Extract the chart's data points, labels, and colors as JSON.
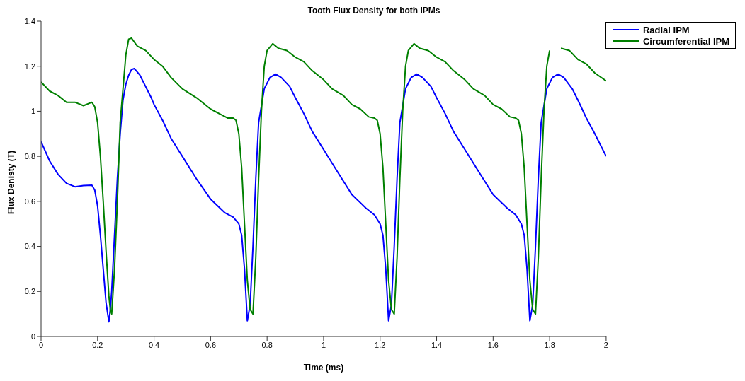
{
  "chart_data": {
    "type": "line",
    "title": "Tooth Flux Density for both IPMs",
    "xlabel": "Time (ms)",
    "ylabel": "Flux Denisty (T)",
    "xlim": [
      0,
      2
    ],
    "xticks": [
      0,
      0.2,
      0.4,
      0.6,
      0.8,
      1,
      1.2,
      1.4,
      1.6,
      1.8,
      2
    ],
    "ylim": [
      0,
      1.4
    ],
    "yticks": [
      0,
      0.2,
      0.4,
      0.6,
      0.8,
      1,
      1.2,
      1.4
    ],
    "grid": false,
    "legend": "top right",
    "marker": "none",
    "line_style": "solid",
    "series": [
      {
        "name": "Radial IPM",
        "color": "#0000ff",
        "x": [
          0,
          0.03,
          0.06,
          0.09,
          0.12,
          0.15,
          0.18,
          0.19,
          0.2,
          0.21,
          0.22,
          0.23,
          0.24,
          0.245,
          0.25,
          0.26,
          0.27,
          0.28,
          0.29,
          0.3,
          0.31,
          0.32,
          0.33,
          0.35,
          0.37,
          0.39,
          0.4,
          0.43,
          0.46,
          0.5,
          0.55,
          0.6,
          0.65,
          0.68,
          0.7,
          0.71,
          0.72,
          0.73,
          0.74,
          0.75,
          0.76,
          0.77,
          0.79,
          0.81,
          0.83,
          0.85,
          0.88,
          0.9,
          0.93,
          0.96,
          1.0,
          1.05,
          1.1,
          1.15,
          1.18,
          1.2,
          1.21,
          1.22,
          1.23,
          1.24,
          1.25,
          1.26,
          1.27,
          1.29,
          1.31,
          1.33,
          1.35,
          1.38,
          1.4,
          1.43,
          1.46,
          1.5,
          1.55,
          1.6,
          1.65,
          1.68,
          1.7,
          1.71,
          1.72,
          1.73,
          1.74,
          1.75,
          1.76,
          1.77,
          1.79,
          1.81,
          1.83,
          1.85,
          1.88,
          1.9,
          1.93,
          1.96,
          2.0
        ],
        "values": [
          0.865,
          0.78,
          0.72,
          0.68,
          0.665,
          0.67,
          0.672,
          0.65,
          0.58,
          0.45,
          0.3,
          0.15,
          0.065,
          0.12,
          0.2,
          0.45,
          0.7,
          0.9,
          1.05,
          1.12,
          1.16,
          1.185,
          1.19,
          1.16,
          1.11,
          1.06,
          1.03,
          0.96,
          0.88,
          0.8,
          0.7,
          0.61,
          0.55,
          0.53,
          0.5,
          0.45,
          0.3,
          0.07,
          0.14,
          0.4,
          0.7,
          0.95,
          1.1,
          1.15,
          1.165,
          1.15,
          1.11,
          1.06,
          0.99,
          0.91,
          0.83,
          0.73,
          0.63,
          0.57,
          0.54,
          0.5,
          0.45,
          0.3,
          0.07,
          0.14,
          0.4,
          0.7,
          0.95,
          1.1,
          1.15,
          1.165,
          1.15,
          1.11,
          1.06,
          0.99,
          0.91,
          0.83,
          0.73,
          0.63,
          0.57,
          0.54,
          0.5,
          0.45,
          0.3,
          0.07,
          0.14,
          0.4,
          0.7,
          0.95,
          1.1,
          1.15,
          1.165,
          1.15,
          1.1,
          1.05,
          0.97,
          0.9,
          0.8
        ]
      },
      {
        "name": "Circumferential IPM",
        "color": "#008000",
        "x": [
          0,
          0.03,
          0.06,
          0.09,
          0.12,
          0.15,
          0.18,
          0.19,
          0.2,
          0.21,
          0.22,
          0.23,
          0.24,
          0.245,
          0.25,
          0.26,
          0.27,
          0.28,
          0.29,
          0.3,
          0.31,
          0.32,
          0.34,
          0.37,
          0.4,
          0.43,
          0.46,
          0.5,
          0.55,
          0.6,
          0.63,
          0.66,
          0.68,
          0.69,
          0.7,
          0.71,
          0.72,
          0.73,
          0.74,
          0.75,
          0.76,
          0.77,
          0.78,
          0.79,
          0.8,
          0.82,
          0.84,
          0.87,
          0.9,
          0.93,
          0.96,
          1.0,
          1.03,
          1.07,
          1.1,
          1.13,
          1.16,
          1.18,
          1.19,
          1.2,
          1.21,
          1.22,
          1.23,
          1.24,
          1.25,
          1.26,
          1.27,
          1.28,
          1.29,
          1.3,
          1.32,
          1.34,
          1.37,
          1.4,
          1.43,
          1.46,
          1.5,
          1.53,
          1.57,
          1.6,
          1.63,
          1.66,
          1.68,
          1.69,
          1.7,
          1.71,
          1.72,
          1.73,
          1.74,
          1.75,
          1.76,
          1.77,
          1.78,
          1.79,
          1.8,
          1.82,
          1.84,
          1.87,
          1.9,
          1.93,
          1.96,
          2.0
        ],
        "values": [
          1.13,
          1.09,
          1.07,
          1.04,
          1.04,
          1.025,
          1.04,
          1.02,
          0.95,
          0.8,
          0.6,
          0.38,
          0.18,
          0.12,
          0.1,
          0.3,
          0.6,
          0.95,
          1.1,
          1.25,
          1.32,
          1.325,
          1.29,
          1.27,
          1.23,
          1.2,
          1.15,
          1.1,
          1.06,
          1.01,
          0.99,
          0.97,
          0.97,
          0.96,
          0.9,
          0.75,
          0.5,
          0.25,
          0.12,
          0.1,
          0.35,
          0.7,
          1.0,
          1.2,
          1.27,
          1.3,
          1.28,
          1.27,
          1.24,
          1.22,
          1.18,
          1.14,
          1.1,
          1.07,
          1.03,
          1.01,
          0.975,
          0.97,
          0.96,
          0.9,
          0.75,
          0.5,
          0.25,
          0.12,
          0.1,
          0.35,
          0.7,
          1.0,
          1.2,
          1.27,
          1.3,
          1.28,
          1.27,
          1.24,
          1.22,
          1.18,
          1.14,
          1.1,
          1.07,
          1.03,
          1.01,
          0.975,
          0.97,
          0.96,
          0.9,
          0.75,
          0.5,
          0.25,
          0.12,
          0.1,
          0.35,
          0.7,
          1.0,
          1.2,
          1.27,
          null,
          1.28,
          1.27,
          1.23,
          1.21,
          1.17,
          1.135
        ]
      }
    ]
  }
}
